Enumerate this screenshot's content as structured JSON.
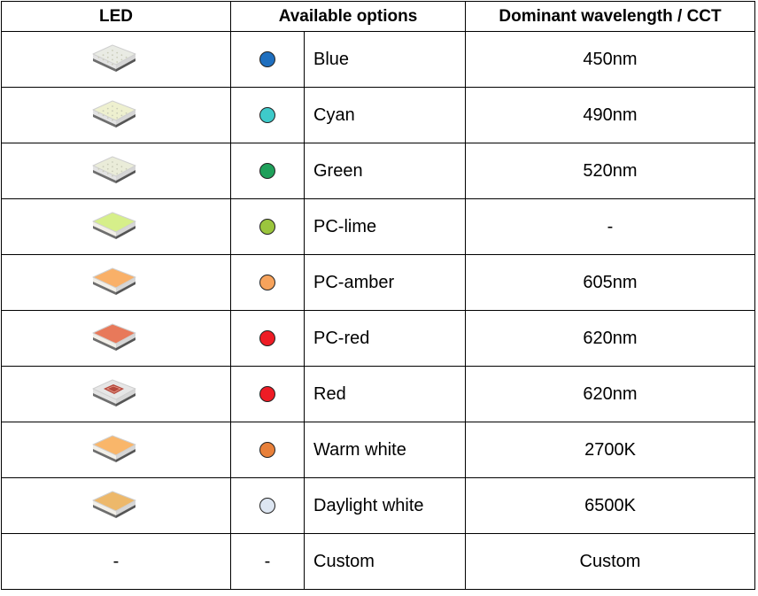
{
  "headers": {
    "led": "LED",
    "options": "Available options",
    "wavelength": "Dominant wavelength / CCT"
  },
  "rows": [
    {
      "chip": "#e9ebe4",
      "chip_type": "grid",
      "dot": "#1f6fbf",
      "name": "Blue",
      "wavelength": "450nm"
    },
    {
      "chip": "#eef0cf",
      "chip_type": "grid",
      "dot": "#3ecaca",
      "name": "Cyan",
      "wavelength": "490nm"
    },
    {
      "chip": "#eaecd9",
      "chip_type": "grid",
      "dot": "#1fa05a",
      "name": "Green",
      "wavelength": "520nm"
    },
    {
      "chip": "#d6ef8a",
      "chip_type": "phosphor",
      "dot": "#9bc53d",
      "name": "PC-lime",
      "wavelength": "-"
    },
    {
      "chip": "#f9b068",
      "chip_type": "phosphor",
      "dot": "#f7a35c",
      "name": "PC-amber",
      "wavelength": "605nm"
    },
    {
      "chip": "#e8795a",
      "chip_type": "phosphor",
      "dot": "#ee1c25",
      "name": "PC-red",
      "wavelength": "620nm"
    },
    {
      "chip": "#e6e6e6",
      "chip_type": "red-die",
      "dot": "#ee1c25",
      "name": "Red",
      "wavelength": "620nm"
    },
    {
      "chip": "#f9b66a",
      "chip_type": "phosphor",
      "dot": "#e8803a",
      "name": "Warm white",
      "wavelength": "2700K"
    },
    {
      "chip": "#edb86a",
      "chip_type": "phosphor",
      "dot": "#dde6f2",
      "name": "Daylight white",
      "wavelength": "6500K"
    }
  ],
  "custom_row": {
    "led": "-",
    "dot": "-",
    "name": "Custom",
    "wavelength": "Custom"
  }
}
